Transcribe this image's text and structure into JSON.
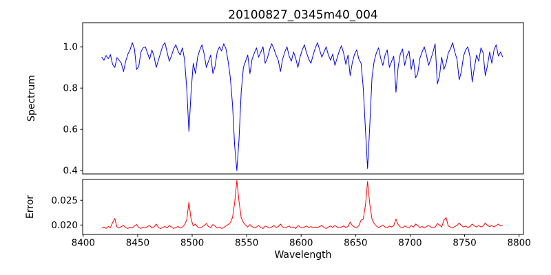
{
  "title": "20100827_0345m40_004",
  "colors": {
    "background": "#ffffff",
    "axis": "#000000",
    "text": "#000000",
    "spectrum_line": "#0000ee",
    "error_line": "#ff0000"
  },
  "chart_data": [
    {
      "type": "line",
      "panel": "spectrum",
      "title": "20100827_0345m40_004",
      "xlabel": "Wavelength",
      "ylabel": "Spectrum",
      "legend": null,
      "grid": false,
      "line_color": "#0000ee",
      "xlim": [
        8399.5,
        8804.0
      ],
      "ylim": [
        0.384,
        1.117
      ],
      "x_ticks": [
        8400,
        8450,
        8500,
        8550,
        8600,
        8650,
        8700,
        8750,
        8800
      ],
      "y_ticks": [
        1.0,
        0.8,
        0.6,
        0.4
      ],
      "y_tick_labels": [
        "1.0",
        "0.8",
        "0.6",
        "0.4"
      ],
      "x_start": 8417,
      "x_step": 2,
      "notable_features": "Ca II triplet absorption lines near 8498, 8542, 8662 with depths 0.59, 0.40, 0.41",
      "values": [
        0.95,
        0.935,
        0.958,
        0.942,
        0.962,
        0.915,
        0.9,
        0.948,
        0.935,
        0.92,
        0.88,
        0.93,
        0.965,
        0.985,
        1.02,
        0.99,
        0.89,
        0.905,
        0.975,
        0.995,
        1.0,
        0.97,
        0.94,
        0.985,
        0.955,
        0.9,
        0.935,
        0.97,
        1.005,
        1.02,
        0.975,
        0.93,
        0.955,
        0.99,
        1.01,
        0.98,
        0.96,
        0.995,
        0.94,
        0.8,
        0.59,
        0.78,
        0.92,
        0.87,
        0.95,
        0.985,
        1.01,
        0.965,
        0.9,
        0.93,
        0.96,
        0.87,
        0.905,
        0.975,
        1.0,
        0.98,
        1.015,
        0.99,
        0.93,
        0.85,
        0.72,
        0.52,
        0.4,
        0.55,
        0.78,
        0.9,
        0.93,
        0.96,
        0.87,
        0.94,
        0.97,
        0.995,
        0.95,
        0.975,
        1.0,
        0.92,
        0.945,
        0.985,
        1.015,
        0.99,
        0.96,
        0.935,
        0.88,
        0.94,
        0.975,
        1.0,
        0.955,
        0.93,
        0.975,
        0.945,
        0.9,
        0.95,
        0.985,
        1.01,
        0.97,
        0.94,
        0.92,
        0.96,
        0.995,
        1.02,
        0.985,
        0.95,
        0.975,
        1.0,
        0.96,
        0.935,
        0.965,
        0.91,
        0.945,
        0.98,
        1.005,
        0.97,
        0.915,
        0.96,
        0.86,
        0.925,
        0.965,
        0.985,
        0.94,
        0.92,
        0.8,
        0.6,
        0.41,
        0.62,
        0.85,
        0.93,
        0.97,
        0.995,
        0.945,
        0.91,
        0.96,
        0.985,
        0.9,
        0.93,
        0.955,
        0.78,
        0.9,
        0.965,
        0.99,
        0.91,
        0.955,
        0.98,
        0.89,
        0.94,
        0.85,
        0.87,
        0.945,
        0.975,
        1.0,
        0.96,
        0.91,
        0.94,
        0.975,
        1.015,
        0.82,
        0.86,
        0.95,
        0.89,
        0.92,
        0.97,
        0.99,
        1.02,
        0.975,
        0.94,
        0.84,
        0.88,
        0.955,
        0.985,
        1.0,
        0.95,
        0.83,
        0.9,
        0.96,
        0.93,
        0.995,
        0.97,
        0.86,
        0.91,
        0.975,
        0.92,
        0.985,
        1.01,
        0.955,
        0.975,
        0.95
      ]
    },
    {
      "type": "line",
      "panel": "error",
      "xlabel": "Wavelength",
      "ylabel": "Error",
      "legend": null,
      "grid": false,
      "line_color": "#ff0000",
      "xlim": [
        8399.5,
        8804.0
      ],
      "ylim": [
        0.0181,
        0.0292
      ],
      "x_ticks": [
        8400,
        8450,
        8500,
        8550,
        8600,
        8650,
        8700,
        8750,
        8800
      ],
      "x_tick_labels": [
        "8400",
        "8450",
        "8500",
        "8550",
        "8600",
        "8650",
        "8700",
        "8750",
        "8800"
      ],
      "y_ticks": [
        0.025,
        0.02
      ],
      "y_tick_labels": [
        "0.025",
        "0.020"
      ],
      "x_start": 8417,
      "x_step": 2,
      "notable_features": "error baseline ~0.0195 with peaks at 8498 (0.0246), 8542 (0.0290), 8662 (0.0288)",
      "values": [
        0.0194,
        0.0196,
        0.0193,
        0.0197,
        0.0195,
        0.0205,
        0.0213,
        0.0196,
        0.0194,
        0.0197,
        0.0199,
        0.0195,
        0.0193,
        0.0196,
        0.0194,
        0.0198,
        0.0201,
        0.0195,
        0.0193,
        0.0196,
        0.0194,
        0.0197,
        0.0199,
        0.0194,
        0.0196,
        0.0202,
        0.0195,
        0.0193,
        0.0195,
        0.0197,
        0.0194,
        0.0199,
        0.0196,
        0.0193,
        0.0195,
        0.0197,
        0.0194,
        0.0196,
        0.02,
        0.021,
        0.0246,
        0.0212,
        0.0198,
        0.0202,
        0.0196,
        0.0194,
        0.0196,
        0.0199,
        0.0203,
        0.0197,
        0.0195,
        0.0201,
        0.0198,
        0.0194,
        0.0196,
        0.0193,
        0.0195,
        0.0198,
        0.0201,
        0.0205,
        0.0215,
        0.0245,
        0.029,
        0.0248,
        0.0215,
        0.0205,
        0.02,
        0.0196,
        0.0201,
        0.0197,
        0.0194,
        0.0196,
        0.0199,
        0.0195,
        0.0193,
        0.0198,
        0.0196,
        0.0194,
        0.0196,
        0.0199,
        0.0195,
        0.0197,
        0.0202,
        0.0196,
        0.0194,
        0.0196,
        0.0198,
        0.0194,
        0.0196,
        0.0193,
        0.0199,
        0.0196,
        0.0194,
        0.0196,
        0.0198,
        0.0195,
        0.0197,
        0.0194,
        0.0196,
        0.0195,
        0.0197,
        0.0199,
        0.0195,
        0.0193,
        0.0196,
        0.0198,
        0.0195,
        0.0199,
        0.0196,
        0.0194,
        0.0196,
        0.0198,
        0.0195,
        0.0197,
        0.0206,
        0.0199,
        0.0196,
        0.0194,
        0.0199,
        0.021,
        0.0212,
        0.024,
        0.0288,
        0.0242,
        0.0212,
        0.0203,
        0.0198,
        0.0195,
        0.0197,
        0.02,
        0.0196,
        0.0194,
        0.0198,
        0.0196,
        0.0199,
        0.0212,
        0.0201,
        0.0196,
        0.0194,
        0.0198,
        0.0196,
        0.0194,
        0.0199,
        0.0196,
        0.0202,
        0.0199,
        0.0195,
        0.0197,
        0.0194,
        0.0197,
        0.0199,
        0.0196,
        0.0194,
        0.0196,
        0.0203,
        0.02,
        0.0196,
        0.021,
        0.0215,
        0.0198,
        0.0196,
        0.0194,
        0.0197,
        0.0199,
        0.0204,
        0.0199,
        0.0196,
        0.0198,
        0.0195,
        0.0197,
        0.0202,
        0.0198,
        0.0196,
        0.0199,
        0.0196,
        0.0198,
        0.0204,
        0.0199,
        0.0197,
        0.0199,
        0.0196,
        0.0199,
        0.0202,
        0.0198,
        0.02
      ]
    }
  ]
}
